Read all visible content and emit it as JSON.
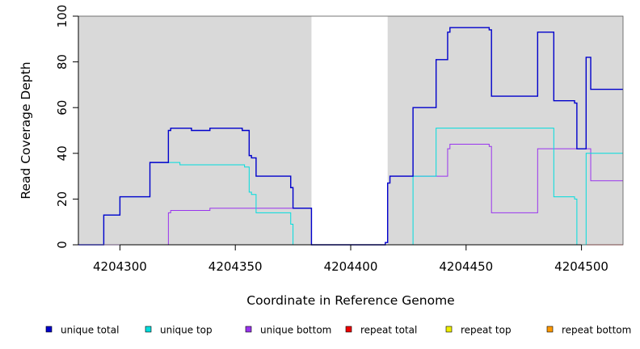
{
  "chart_data": {
    "type": "line",
    "xlabel": "Coordinate in Reference Genome",
    "ylabel": "Read Coverage Depth",
    "xlim": [
      4204282,
      4204518
    ],
    "ylim": [
      0,
      100
    ],
    "x_ticks": [
      4204300,
      4204350,
      4204400,
      4204450,
      4204500
    ],
    "y_ticks": [
      0,
      20,
      40,
      60,
      80,
      100
    ],
    "background_color": "#d9d9d9",
    "gap_region": [
      4204383,
      4204416
    ],
    "gap_color": "#ffffff",
    "legend_placement": "bottom",
    "series": [
      {
        "name": "unique total",
        "color": "#0000cc",
        "points": [
          [
            4204282,
            0
          ],
          [
            4204293,
            0
          ],
          [
            4204293,
            13
          ],
          [
            4204300,
            13
          ],
          [
            4204300,
            21
          ],
          [
            4204313,
            21
          ],
          [
            4204313,
            36
          ],
          [
            4204321,
            36
          ],
          [
            4204321,
            50
          ],
          [
            4204322,
            50
          ],
          [
            4204322,
            51
          ],
          [
            4204331,
            51
          ],
          [
            4204331,
            50
          ],
          [
            4204339,
            50
          ],
          [
            4204339,
            51
          ],
          [
            4204353,
            51
          ],
          [
            4204353,
            50
          ],
          [
            4204356,
            50
          ],
          [
            4204356,
            39
          ],
          [
            4204357,
            39
          ],
          [
            4204357,
            38
          ],
          [
            4204359,
            38
          ],
          [
            4204359,
            30
          ],
          [
            4204374,
            30
          ],
          [
            4204374,
            25
          ],
          [
            4204375,
            25
          ],
          [
            4204375,
            16
          ],
          [
            4204383,
            16
          ],
          [
            4204383,
            0
          ],
          [
            4204415,
            0
          ],
          [
            4204415,
            1
          ],
          [
            4204416,
            1
          ],
          [
            4204416,
            27
          ],
          [
            4204417,
            27
          ],
          [
            4204417,
            30
          ],
          [
            4204427,
            30
          ],
          [
            4204427,
            60
          ],
          [
            4204437,
            60
          ],
          [
            4204437,
            81
          ],
          [
            4204442,
            81
          ],
          [
            4204442,
            93
          ],
          [
            4204443,
            93
          ],
          [
            4204443,
            95
          ],
          [
            4204460,
            95
          ],
          [
            4204460,
            94
          ],
          [
            4204461,
            94
          ],
          [
            4204461,
            65
          ],
          [
            4204481,
            65
          ],
          [
            4204481,
            93
          ],
          [
            4204488,
            93
          ],
          [
            4204488,
            63
          ],
          [
            4204497,
            63
          ],
          [
            4204497,
            62
          ],
          [
            4204498,
            62
          ],
          [
            4204498,
            42
          ],
          [
            4204502,
            42
          ],
          [
            4204502,
            82
          ],
          [
            4204504,
            82
          ],
          [
            4204504,
            68
          ],
          [
            4204518,
            68
          ]
        ]
      },
      {
        "name": "unique top",
        "color": "#00dddd",
        "points": [
          [
            4204282,
            0
          ],
          [
            4204293,
            0
          ],
          [
            4204293,
            13
          ],
          [
            4204300,
            13
          ],
          [
            4204300,
            21
          ],
          [
            4204313,
            21
          ],
          [
            4204313,
            36
          ],
          [
            4204326,
            36
          ],
          [
            4204326,
            35
          ],
          [
            4204354,
            35
          ],
          [
            4204354,
            34
          ],
          [
            4204356,
            34
          ],
          [
            4204356,
            23
          ],
          [
            4204357,
            23
          ],
          [
            4204357,
            22
          ],
          [
            4204359,
            22
          ],
          [
            4204359,
            14
          ],
          [
            4204374,
            14
          ],
          [
            4204374,
            9
          ],
          [
            4204375,
            9
          ],
          [
            4204375,
            0
          ],
          [
            4204427,
            0
          ],
          [
            4204427,
            30
          ],
          [
            4204437,
            30
          ],
          [
            4204437,
            51
          ],
          [
            4204488,
            51
          ],
          [
            4204488,
            21
          ],
          [
            4204497,
            21
          ],
          [
            4204497,
            20
          ],
          [
            4204498,
            20
          ],
          [
            4204498,
            0
          ],
          [
            4204502,
            0
          ],
          [
            4204502,
            40
          ],
          [
            4204518,
            40
          ]
        ]
      },
      {
        "name": "unique bottom",
        "color": "#9933ee",
        "points": [
          [
            4204282,
            0
          ],
          [
            4204321,
            0
          ],
          [
            4204321,
            14
          ],
          [
            4204322,
            14
          ],
          [
            4204322,
            15
          ],
          [
            4204339,
            15
          ],
          [
            4204339,
            16
          ],
          [
            4204383,
            16
          ],
          [
            4204383,
            0
          ],
          [
            4204415,
            0
          ],
          [
            4204415,
            1
          ],
          [
            4204416,
            1
          ],
          [
            4204416,
            27
          ],
          [
            4204417,
            27
          ],
          [
            4204417,
            30
          ],
          [
            4204442,
            30
          ],
          [
            4204442,
            42
          ],
          [
            4204443,
            42
          ],
          [
            4204443,
            44
          ],
          [
            4204460,
            44
          ],
          [
            4204460,
            43
          ],
          [
            4204461,
            43
          ],
          [
            4204461,
            14
          ],
          [
            4204481,
            14
          ],
          [
            4204481,
            42
          ],
          [
            4204504,
            42
          ],
          [
            4204504,
            28
          ],
          [
            4204518,
            28
          ]
        ]
      },
      {
        "name": "repeat total",
        "color": "#ee0000",
        "points": [
          [
            4204282,
            0
          ],
          [
            4204518,
            0
          ]
        ]
      },
      {
        "name": "repeat top",
        "color": "#eeee00",
        "points": [
          [
            4204282,
            0
          ],
          [
            4204518,
            0
          ]
        ]
      },
      {
        "name": "repeat bottom",
        "color": "#ff9900",
        "points": [
          [
            4204282,
            0
          ],
          [
            4204518,
            0
          ]
        ]
      }
    ]
  }
}
